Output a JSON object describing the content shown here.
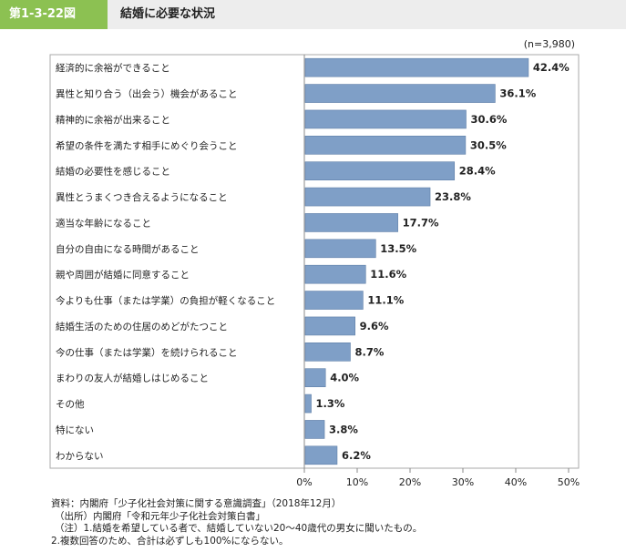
{
  "header": {
    "figure_number": "第1-3-22図",
    "title": "結婚に必要な状況"
  },
  "chart_data": {
    "type": "bar",
    "orientation": "horizontal",
    "sample_note": "(n=3,980)",
    "categories": [
      "経済的に余裕ができること",
      "異性と知り合う（出会う）機会があること",
      "精神的に余裕が出来ること",
      "希望の条件を満たす相手にめぐり会うこと",
      "結婚の必要性を感じること",
      "異性とうまくつき合えるようになること",
      "適当な年齢になること",
      "自分の自由になる時間があること",
      "親や周囲が結婚に同意すること",
      "今よりも仕事（または学業）の負担が軽くなること",
      "結婚生活のための住居のめどがたつこと",
      "今の仕事（または学業）を続けられること",
      "まわりの友人が結婚しはじめること",
      "その他",
      "特にない",
      "わからない"
    ],
    "values": [
      42.4,
      36.1,
      30.6,
      30.5,
      28.4,
      23.8,
      17.7,
      13.5,
      11.6,
      11.1,
      9.6,
      8.7,
      4.0,
      1.3,
      3.8,
      6.2
    ],
    "value_labels": [
      "42.4%",
      "36.1%",
      "30.6%",
      "30.5%",
      "28.4%",
      "23.8%",
      "17.7%",
      "13.5%",
      "11.6%",
      "11.1%",
      "9.6%",
      "8.7%",
      "4.0%",
      "1.3%",
      "3.8%",
      "6.2%"
    ],
    "xlim": [
      0,
      50
    ],
    "xticks": [
      0,
      10,
      20,
      30,
      40,
      50
    ],
    "xtick_labels": [
      "0%",
      "10%",
      "20%",
      "30%",
      "40%",
      "50%"
    ],
    "bar_color": "#7f9fc7",
    "bar_edge_color": "#5f7fa8",
    "grid": false
  },
  "notes": [
    "資料：内閣府「少子化社会対策に関する意識調査」（2018年12月）",
    "（出所）内閣府「令和元年少子化社会対策白書」",
    "（注）1.結婚を希望している者で、結婚していない20～40歳代の男女に聞いたもの。",
    "2.複数回答のため、合計は必ずしも100%にならない。"
  ]
}
